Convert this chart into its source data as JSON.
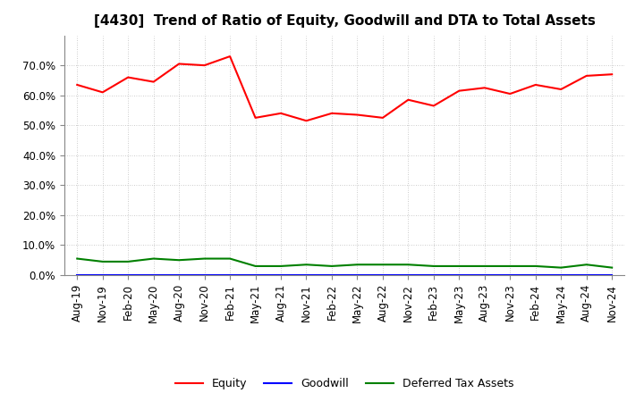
{
  "title": "[4430]  Trend of Ratio of Equity, Goodwill and DTA to Total Assets",
  "x_labels": [
    "Aug-19",
    "Nov-19",
    "Feb-20",
    "May-20",
    "Aug-20",
    "Nov-20",
    "Feb-21",
    "May-21",
    "Aug-21",
    "Nov-21",
    "Feb-22",
    "May-22",
    "Aug-22",
    "Nov-22",
    "Feb-23",
    "May-23",
    "Aug-23",
    "Nov-23",
    "Feb-24",
    "May-24",
    "Aug-24",
    "Nov-24"
  ],
  "equity": [
    63.5,
    61.0,
    66.0,
    64.5,
    70.5,
    70.0,
    73.0,
    52.5,
    54.0,
    51.5,
    54.0,
    53.5,
    52.5,
    58.5,
    56.5,
    61.5,
    62.5,
    60.5,
    63.5,
    62.0,
    66.5,
    67.0
  ],
  "goodwill": [
    0.0,
    0.0,
    0.0,
    0.0,
    0.0,
    0.0,
    0.0,
    0.0,
    0.0,
    0.0,
    0.0,
    0.0,
    0.0,
    0.0,
    0.0,
    0.0,
    0.0,
    0.0,
    0.0,
    0.0,
    0.0,
    0.0
  ],
  "dta": [
    5.5,
    4.5,
    4.5,
    5.5,
    5.0,
    5.5,
    5.5,
    3.0,
    3.0,
    3.5,
    3.0,
    3.5,
    3.5,
    3.5,
    3.0,
    3.0,
    3.0,
    3.0,
    3.0,
    2.5,
    3.5,
    2.5
  ],
  "equity_color": "#ff0000",
  "goodwill_color": "#0000ff",
  "dta_color": "#008000",
  "ylim": [
    0,
    80
  ],
  "yticks": [
    0,
    10,
    20,
    30,
    40,
    50,
    60,
    70
  ],
  "background_color": "#ffffff",
  "grid_color": "#aaaaaa",
  "title_fontsize": 11,
  "tick_fontsize": 8.5,
  "legend_fontsize": 9
}
